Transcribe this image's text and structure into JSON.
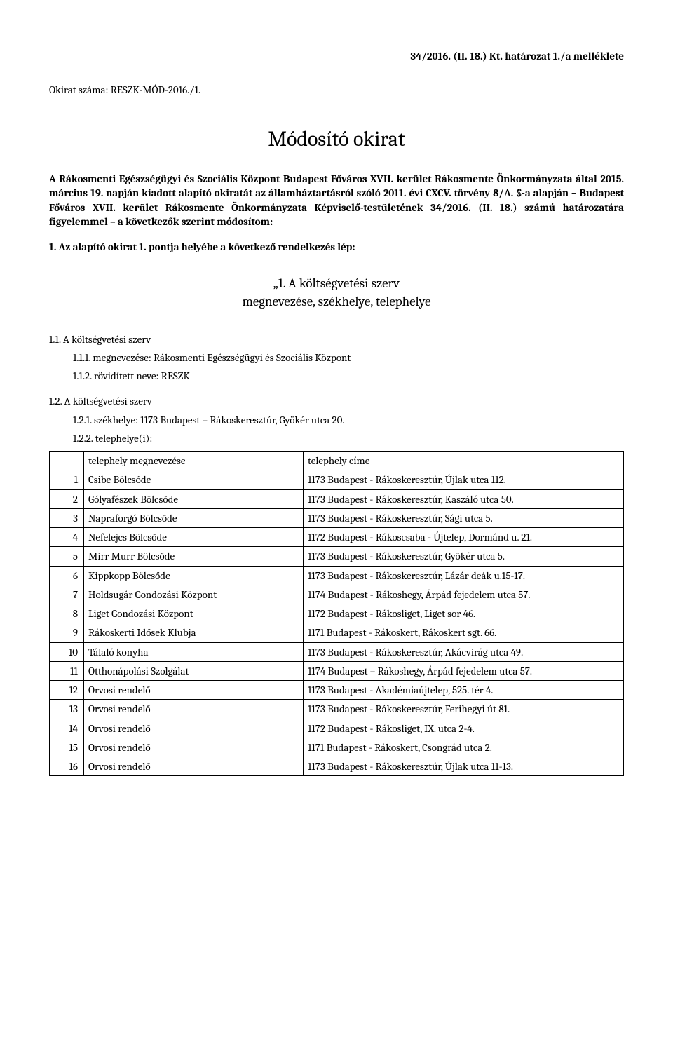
{
  "header": {
    "right": "34/2016. (II. 18.) Kt. határozat 1./a melléklete",
    "okirat_szama_label": "Okirat száma: ",
    "okirat_szama_value": "RESZK-MÓD-2016./1."
  },
  "title": "Módosító okirat",
  "intro": "A Rákosmenti Egészségügyi és Szociális Központ Budapest Főváros XVII. kerület Rákosmente Önkormányzata által 2015. március 19. napján kiadott alapító okiratát az államháztartásról szóló 2011. évi CXCV. törvény 8/A. §-a alapján – Budapest Főváros XVII. kerület Rákosmente Önkormányzata Képviselő-testületének 34/2016. (II. 18.) számú határozatára figyelemmel – a következők szerint módosítom:",
  "para1": "1. Az alapító okirat 1. pontja helyébe a következő rendelkezés lép:",
  "section_heading_line1": "„1. A költségvetési szerv",
  "section_heading_line2": "megnevezése, székhelye, telephelye",
  "sec11": "1.1.   A költségvetési szerv",
  "sec111": "1.1.1. megnevezése: Rákosmenti Egészségügyi és Szociális Központ",
  "sec112": "1.1.2. rövidített neve: RESZK",
  "sec12": "1.2.   A költségvetési szerv",
  "sec121": "1.2.1. székhelye: 1173 Budapest – Rákoskeresztúr, Gyökér utca 20.",
  "sec122": "1.2.2. telephelye(i):",
  "table": {
    "col_name": "telephely megnevezése",
    "col_addr": "telephely címe",
    "rows": [
      {
        "n": "1",
        "name": "Csibe Bölcsőde",
        "addr": "1173 Budapest - Rákoskeresztúr, Újlak utca 112."
      },
      {
        "n": "2",
        "name": "Gólyafészek Bölcsőde",
        "addr": "1173 Budapest - Rákoskeresztúr, Kaszáló utca 50."
      },
      {
        "n": "3",
        "name": "Napraforgó Bölcsőde",
        "addr": "1173 Budapest - Rákoskeresztúr, Sági utca 5."
      },
      {
        "n": "4",
        "name": "Nefelejcs Bölcsőde",
        "addr": "1172 Budapest - Rákoscsaba - Újtelep, Dormánd u. 21."
      },
      {
        "n": "5",
        "name": "Mirr Murr Bölcsőde",
        "addr": "1173 Budapest - Rákoskeresztúr, Gyökér utca 5."
      },
      {
        "n": "6",
        "name": "Kippkopp Bölcsőde",
        "addr": "1173 Budapest - Rákoskeresztúr, Lázár deák u.15-17."
      },
      {
        "n": "7",
        "name": "Holdsugár Gondozási Központ",
        "addr": "1174 Budapest - Rákoshegy, Árpád fejedelem utca 57."
      },
      {
        "n": "8",
        "name": "Liget Gondozási Központ",
        "addr": "1172 Budapest - Rákosliget, Liget sor 46."
      },
      {
        "n": "9",
        "name": "Rákoskerti Idősek Klubja",
        "addr": "1171 Budapest - Rákoskert, Rákoskert sgt. 66."
      },
      {
        "n": "10",
        "name": "Tálaló konyha",
        "addr": "1173 Budapest - Rákoskeresztúr, Akácvirág utca 49."
      },
      {
        "n": "11",
        "name": "Otthonápolási Szolgálat",
        "addr": "1174 Budapest – Rákoshegy, Árpád fejedelem utca 57."
      },
      {
        "n": "12",
        "name": "Orvosi rendelő",
        "addr": "1173 Budapest - Akadémiaújtelep, 525. tér 4."
      },
      {
        "n": "13",
        "name": "Orvosi rendelő",
        "addr": "1173 Budapest - Rákoskeresztúr, Ferihegyi út 81."
      },
      {
        "n": "14",
        "name": "Orvosi rendelő",
        "addr": "1172 Budapest - Rákosliget, IX. utca 2-4."
      },
      {
        "n": "15",
        "name": "Orvosi rendelő",
        "addr": "1171 Budapest - Rákoskert, Csongrád utca 2."
      },
      {
        "n": "16",
        "name": "Orvosi rendelő",
        "addr": "1173 Budapest - Rákoskeresztúr, Újlak utca 11-13."
      }
    ]
  }
}
